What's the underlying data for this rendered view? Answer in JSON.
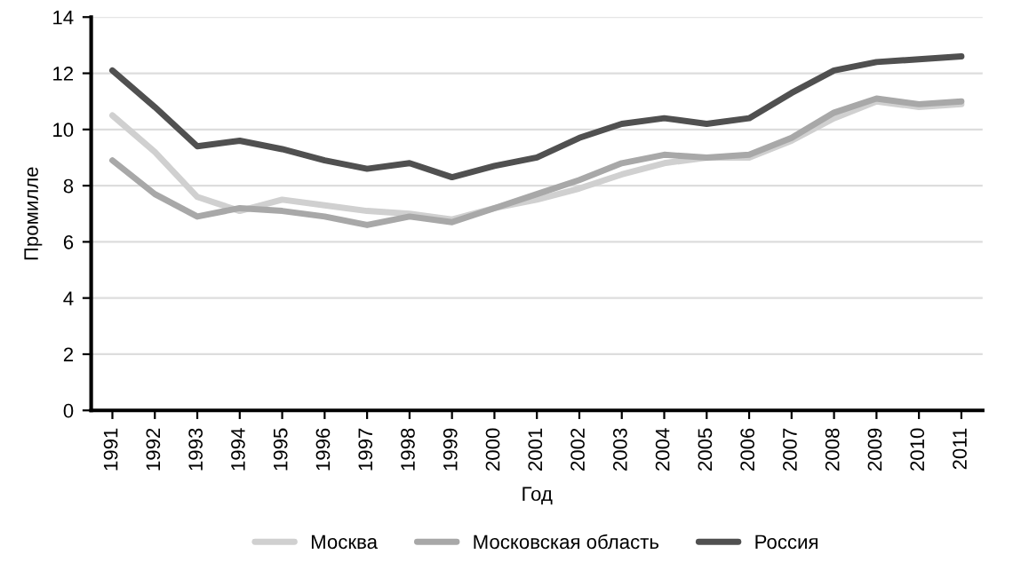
{
  "chart_data": {
    "type": "line",
    "xlabel": "Год",
    "ylabel": "Промилле",
    "categories": [
      "1991",
      "1992",
      "1993",
      "1994",
      "1995",
      "1996",
      "1997",
      "1998",
      "1999",
      "2000",
      "2001",
      "2002",
      "2003",
      "2004",
      "2005",
      "2006",
      "2007",
      "2008",
      "2009",
      "2010",
      "2011"
    ],
    "series": [
      {
        "name": "Москва",
        "color": "#d0d0d0",
        "values": [
          10.5,
          9.2,
          7.6,
          7.1,
          7.5,
          7.3,
          7.1,
          7.0,
          6.8,
          7.2,
          7.5,
          7.9,
          8.4,
          8.8,
          9.0,
          9.0,
          9.6,
          10.4,
          11.0,
          10.8,
          10.9
        ]
      },
      {
        "name": "Московская область",
        "color": "#a8a8a8",
        "values": [
          8.9,
          7.7,
          6.9,
          7.2,
          7.1,
          6.9,
          6.6,
          6.9,
          6.7,
          7.2,
          7.7,
          8.2,
          8.8,
          9.1,
          9.0,
          9.1,
          9.7,
          10.6,
          11.1,
          10.9,
          11.0
        ]
      },
      {
        "name": "Россия",
        "color": "#505050",
        "values": [
          12.1,
          10.8,
          9.4,
          9.6,
          9.3,
          8.9,
          8.6,
          8.8,
          8.3,
          8.7,
          9.0,
          9.7,
          10.2,
          10.4,
          10.2,
          10.4,
          11.3,
          12.1,
          12.4,
          12.5,
          12.6
        ]
      }
    ],
    "ylim": [
      0,
      14
    ],
    "yticks": [
      0,
      2,
      4,
      6,
      8,
      10,
      12,
      14
    ],
    "grid": "y",
    "legend": "bottom",
    "marker": "none",
    "line_style": "solid"
  }
}
